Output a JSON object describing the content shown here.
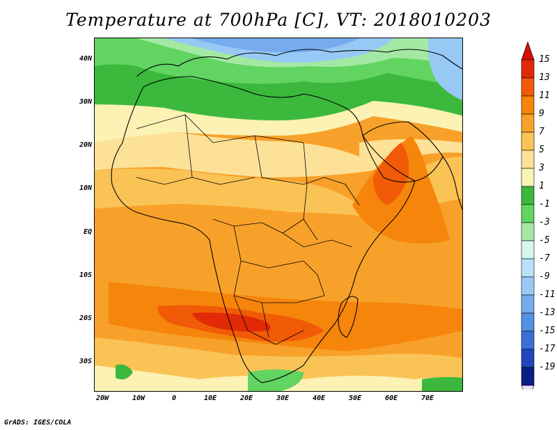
{
  "title": "Temperature at 700hPa [C], VT: 2018010203",
  "credit": "GrADS: IGES/COLA",
  "lat_labels": [
    "40N",
    "30N",
    "20N",
    "10N",
    "EQ",
    "10S",
    "20S",
    "30S"
  ],
  "lon_labels": [
    "20W",
    "10W",
    "0",
    "10E",
    "20E",
    "30E",
    "40E",
    "50E",
    "60E",
    "70E"
  ],
  "colorbar": {
    "labels": [
      "15",
      "13",
      "11",
      "9",
      "7",
      "5",
      "3",
      "1",
      "-1",
      "-3",
      "-5",
      "-7",
      "-9",
      "-11",
      "-13",
      "-15",
      "-17",
      "-19"
    ],
    "colors": [
      "#e22a06",
      "#f15a06",
      "#f6850b",
      "#f8a12a",
      "#fac356",
      "#fde197",
      "#fbf2b4",
      "#3cb83c",
      "#61d461",
      "#a3e9a3",
      "#d4f7e8",
      "#b9e2fa",
      "#98c9f5",
      "#76acee",
      "#5391e4",
      "#3a6fd8",
      "#1f47bb",
      "#0c1d85"
    ],
    "over_color": "#d4100a",
    "under_color": "#e6e4fb"
  }
}
